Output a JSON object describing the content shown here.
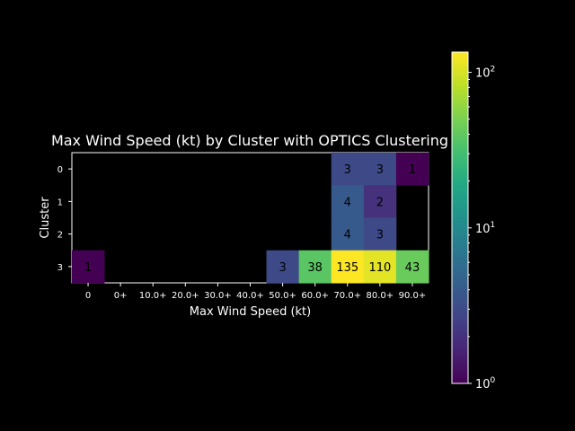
{
  "chart_data": {
    "type": "heatmap",
    "title": "Max Wind Speed (kt) by Cluster with OPTICS Clustering",
    "xlabel": "Max Wind Speed (kt)",
    "ylabel": "Cluster",
    "x_categories": [
      "0",
      "0+",
      "10.0+",
      "20.0+",
      "30.0+",
      "40.0+",
      "50.0+",
      "60.0+",
      "70.0+",
      "80.0+",
      "90.0+"
    ],
    "y_categories": [
      "0",
      "1",
      "2",
      "3"
    ],
    "cells": [
      {
        "row": "0",
        "col": "70.0+",
        "value": 3
      },
      {
        "row": "0",
        "col": "80.0+",
        "value": 3
      },
      {
        "row": "0",
        "col": "90.0+",
        "value": 1
      },
      {
        "row": "1",
        "col": "70.0+",
        "value": 4
      },
      {
        "row": "1",
        "col": "80.0+",
        "value": 2
      },
      {
        "row": "2",
        "col": "70.0+",
        "value": 4
      },
      {
        "row": "2",
        "col": "80.0+",
        "value": 3
      },
      {
        "row": "3",
        "col": "0",
        "value": 1
      },
      {
        "row": "3",
        "col": "50.0+",
        "value": 3
      },
      {
        "row": "3",
        "col": "60.0+",
        "value": 38
      },
      {
        "row": "3",
        "col": "70.0+",
        "value": 135
      },
      {
        "row": "3",
        "col": "80.0+",
        "value": 110
      },
      {
        "row": "3",
        "col": "90.0+",
        "value": 43
      }
    ],
    "colorbar": {
      "scale": "log",
      "colormap": "viridis",
      "range": [
        1,
        135
      ],
      "ticks": [
        {
          "base": "10",
          "exp": "0",
          "value": 1
        },
        {
          "base": "10",
          "exp": "1",
          "value": 10
        },
        {
          "base": "10",
          "exp": "2",
          "value": 100
        }
      ]
    },
    "background": "#000000",
    "text_color": "#ffffff",
    "cell_text_color": "#000000"
  }
}
